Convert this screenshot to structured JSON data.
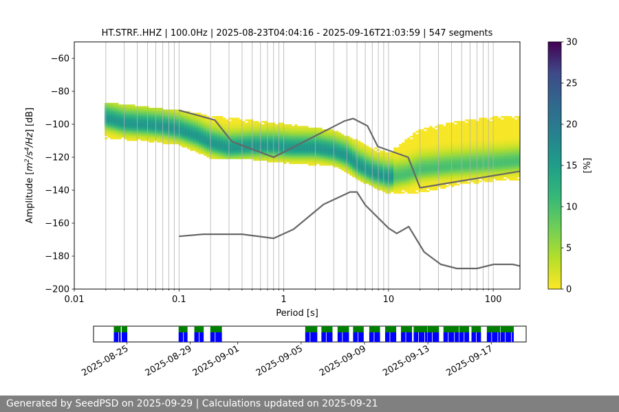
{
  "chart_data": {
    "type": "heatmap",
    "title": "HT.STRF..HHZ | 100.0Hz | 2025-08-23T04:04:16 - 2025-09-16T21:03:59 | 547 segments",
    "xlabel": "Period [s]",
    "ylabel": "Amplitude [m²/s⁴/Hz] [dB]",
    "ylabel_parts": {
      "a": "Amplitude [",
      "b": "m",
      "c": "2",
      "d": "/s",
      "e": "4",
      "f": "/Hz",
      "g": "] [dB]"
    },
    "x_scale": "log",
    "xlim": [
      0.01,
      180
    ],
    "ylim": [
      -200,
      -50
    ],
    "x_ticks": [
      {
        "value": 0.01,
        "label": "0.01"
      },
      {
        "value": 0.1,
        "label": "0.1"
      },
      {
        "value": 1,
        "label": "1"
      },
      {
        "value": 10,
        "label": "10"
      },
      {
        "value": 100,
        "label": "100"
      }
    ],
    "y_ticks": [
      {
        "value": -60,
        "label": "−60"
      },
      {
        "value": -80,
        "label": "−80"
      },
      {
        "value": -100,
        "label": "−100"
      },
      {
        "value": -120,
        "label": "−120"
      },
      {
        "value": -140,
        "label": "−140"
      },
      {
        "value": -160,
        "label": "−160"
      },
      {
        "value": -180,
        "label": "−180"
      },
      {
        "value": -200,
        "label": "−200"
      }
    ],
    "grid": true,
    "colorbar": {
      "label": "[%]",
      "range": [
        0,
        30
      ],
      "ticks": [
        {
          "value": 0,
          "label": "0"
        },
        {
          "value": 5,
          "label": "5"
        },
        {
          "value": 10,
          "label": "10"
        },
        {
          "value": 15,
          "label": "15"
        },
        {
          "value": 20,
          "label": "20"
        },
        {
          "value": 25,
          "label": "25"
        },
        {
          "value": 30,
          "label": "30"
        }
      ],
      "colormap": "viridis_r"
    },
    "psd_mode": [
      [
        0.02,
        -97
      ],
      [
        0.03,
        -100
      ],
      [
        0.05,
        -101
      ],
      [
        0.07,
        -102
      ],
      [
        0.1,
        -104
      ],
      [
        0.15,
        -108
      ],
      [
        0.2,
        -112
      ],
      [
        0.3,
        -115
      ],
      [
        0.5,
        -114
      ],
      [
        0.8,
        -114
      ],
      [
        1.2,
        -115
      ],
      [
        2.0,
        -115
      ],
      [
        3.0,
        -117
      ],
      [
        4.0,
        -120
      ],
      [
        5.0,
        -125
      ],
      [
        7.0,
        -130
      ],
      [
        10.0,
        -133
      ],
      [
        15.0,
        -131
      ],
      [
        20.0,
        -128
      ],
      [
        40.0,
        -126
      ],
      [
        70.0,
        -125
      ],
      [
        120.0,
        -124
      ],
      [
        180.0,
        -123
      ]
    ],
    "psd_spread": [
      [
        0.02,
        -87,
        -109
      ],
      [
        0.05,
        -90,
        -111
      ],
      [
        0.1,
        -92,
        -113
      ],
      [
        0.2,
        -95,
        -121
      ],
      [
        0.5,
        -98,
        -122
      ],
      [
        1.0,
        -100,
        -124
      ],
      [
        3.0,
        -104,
        -126
      ],
      [
        5.0,
        -110,
        -134
      ],
      [
        10.0,
        -118,
        -143
      ],
      [
        20.0,
        -103,
        -142
      ],
      [
        50.0,
        -98,
        -137
      ],
      [
        100.0,
        -96,
        -135
      ],
      [
        180.0,
        -95,
        -134
      ]
    ],
    "high_noise_model": [
      [
        0.1,
        -91.5
      ],
      [
        0.22,
        -97.4
      ],
      [
        0.32,
        -110.5
      ],
      [
        0.8,
        -120
      ],
      [
        3.8,
        -98
      ],
      [
        4.6,
        -96.5
      ],
      [
        6.3,
        -101
      ],
      [
        7.9,
        -113.5
      ],
      [
        15.4,
        -120
      ],
      [
        20,
        -138.5
      ],
      [
        180,
        -128.5
      ]
    ],
    "low_noise_model": [
      [
        0.1,
        -168
      ],
      [
        0.17,
        -166.7
      ],
      [
        0.4,
        -166.7
      ],
      [
        0.8,
        -169.2
      ],
      [
        1.24,
        -163.7
      ],
      [
        2.4,
        -148.6
      ],
      [
        4.3,
        -141.1
      ],
      [
        5.0,
        -141.1
      ],
      [
        6.0,
        -149
      ],
      [
        10.0,
        -163
      ],
      [
        12.0,
        -166.2
      ],
      [
        15.6,
        -162.1
      ],
      [
        21.9,
        -177.5
      ],
      [
        31.6,
        -185
      ],
      [
        45,
        -187.5
      ],
      [
        70,
        -187.5
      ],
      [
        101,
        -185
      ],
      [
        154,
        -185
      ],
      [
        180,
        -186
      ]
    ],
    "timeline": {
      "ticks": [
        {
          "date": "2025-08-25",
          "label": "2025-08-25"
        },
        {
          "date": "2025-08-29",
          "label": "2025-08-29"
        },
        {
          "date": "2025-09-01",
          "label": "2025-09-01"
        },
        {
          "date": "2025-09-05",
          "label": "2025-09-05"
        },
        {
          "date": "2025-09-09",
          "label": "2025-09-09"
        },
        {
          "date": "2025-09-13",
          "label": "2025-09-13"
        },
        {
          "date": "2025-09-17",
          "label": "2025-09-17"
        }
      ],
      "range_days_from_2025_08_23": [
        -0.1,
        27.2
      ],
      "data_color": "#008000",
      "psd_color": "#0000ff",
      "segments_days": [
        [
          1.18,
          1.62
        ],
        [
          1.68,
          2.03
        ],
        [
          5.27,
          5.83
        ],
        [
          6.26,
          6.85
        ],
        [
          7.27,
          8.0
        ],
        [
          13.26,
          14.02
        ],
        [
          14.28,
          14.98
        ],
        [
          15.3,
          16.02
        ],
        [
          16.28,
          16.95
        ],
        [
          17.3,
          17.98
        ],
        [
          18.3,
          19.0
        ],
        [
          19.3,
          20.0
        ],
        [
          20.1,
          20.95
        ],
        [
          20.97,
          21.7
        ],
        [
          21.98,
          22.95
        ],
        [
          22.98,
          23.6
        ],
        [
          23.75,
          24.35
        ],
        [
          24.72,
          25.55
        ],
        [
          25.58,
          26.42
        ]
      ]
    }
  },
  "footer": {
    "text": "Generated by SeedPSD on 2025-09-29 | Calculations updated on 2025-09-21"
  }
}
